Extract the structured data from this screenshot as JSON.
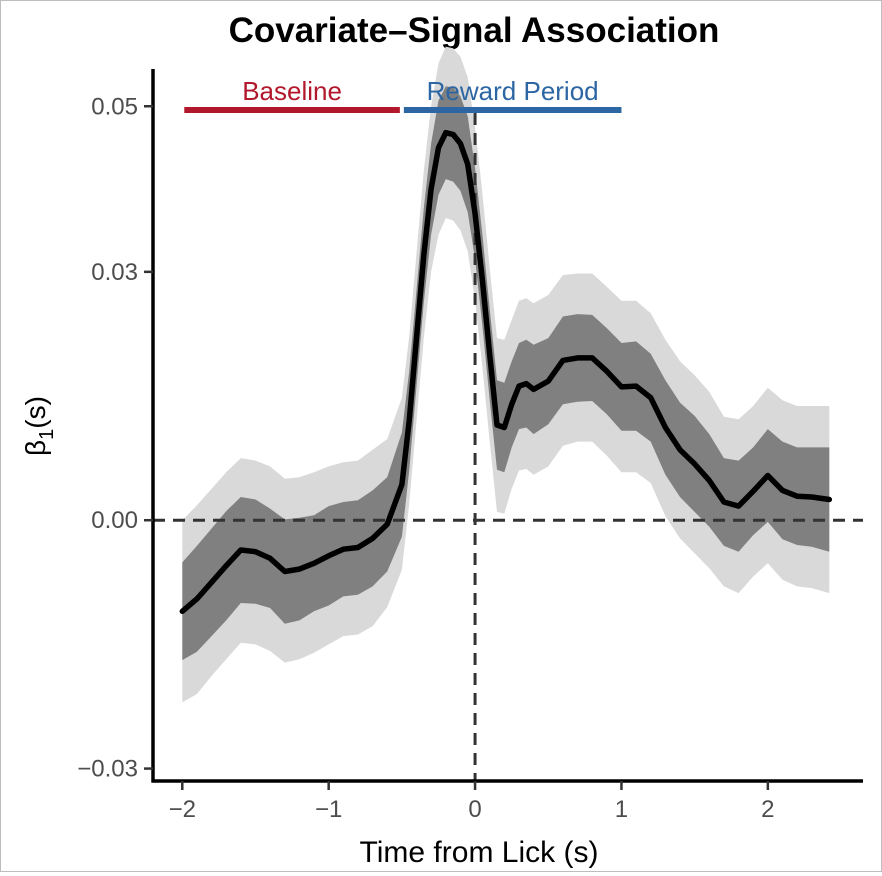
{
  "chart_data": {
    "type": "line",
    "title": "Covariate–Signal Association",
    "xlabel": "Time from Lick (s)",
    "ylabel": "β₁(s)",
    "ylabel_main": "β",
    "ylabel_sub": "1",
    "ylabel_suffix": "(s)",
    "xlim": [
      -2.2,
      2.65
    ],
    "ylim": [
      -0.0315,
      0.0545
    ],
    "xticks": [
      -2,
      -1,
      0,
      1,
      2
    ],
    "xtick_labels": [
      "−2",
      "−1",
      "0",
      "1",
      "2"
    ],
    "yticks": [
      -0.03,
      0.0,
      0.03,
      0.05
    ],
    "ytick_labels": [
      "−0.03",
      "0.00",
      "0.03",
      "0.05"
    ],
    "grid": false,
    "reference_lines": {
      "hline_y": 0,
      "vline_x": 0,
      "style": "dashed"
    },
    "periods": [
      {
        "label": "Baseline",
        "x_start": -2.0,
        "x_end": -0.5,
        "color": "#b2182b"
      },
      {
        "label": "Reward Period",
        "x_start": -0.5,
        "x_end": 1.0,
        "color": "#2c66a3"
      }
    ],
    "series": [
      {
        "name": "estimate",
        "color": "#000000",
        "x": [
          -2.0,
          -1.9,
          -1.8,
          -1.7,
          -1.6,
          -1.5,
          -1.4,
          -1.3,
          -1.2,
          -1.1,
          -1.0,
          -0.9,
          -0.8,
          -0.7,
          -0.6,
          -0.5,
          -0.45,
          -0.4,
          -0.35,
          -0.3,
          -0.25,
          -0.2,
          -0.15,
          -0.1,
          -0.05,
          0.0,
          0.05,
          0.1,
          0.15,
          0.2,
          0.25,
          0.3,
          0.35,
          0.4,
          0.5,
          0.6,
          0.7,
          0.8,
          0.9,
          1.0,
          1.1,
          1.2,
          1.3,
          1.4,
          1.5,
          1.6,
          1.7,
          1.8,
          1.9,
          2.0,
          2.1,
          2.2,
          2.3,
          2.42
        ],
        "values": [
          -0.011,
          -0.0095,
          -0.0075,
          -0.0055,
          -0.0036,
          -0.0038,
          -0.0046,
          -0.0062,
          -0.0059,
          -0.0052,
          -0.0043,
          -0.0035,
          -0.0033,
          -0.0022,
          -0.0005,
          0.0043,
          0.012,
          0.022,
          0.032,
          0.04,
          0.045,
          0.0468,
          0.0466,
          0.0455,
          0.043,
          0.037,
          0.029,
          0.02,
          0.0115,
          0.0112,
          0.014,
          0.0162,
          0.0165,
          0.0158,
          0.0168,
          0.0193,
          0.0196,
          0.0196,
          0.018,
          0.0161,
          0.0162,
          0.0148,
          0.0112,
          0.0085,
          0.0068,
          0.0048,
          0.0022,
          0.0017,
          0.0035,
          0.0054,
          0.0036,
          0.0029,
          0.0028,
          0.0025
        ]
      }
    ],
    "bands": [
      {
        "name": "inner-band",
        "color": "#808080",
        "lower": [
          -0.0169,
          -0.0159,
          -0.014,
          -0.0121,
          -0.01,
          -0.0101,
          -0.0106,
          -0.0125,
          -0.0121,
          -0.011,
          -0.0103,
          -0.0092,
          -0.009,
          -0.008,
          -0.0062,
          -0.002,
          0.006,
          0.0162,
          0.0263,
          0.0345,
          0.0393,
          0.0412,
          0.0409,
          0.0398,
          0.0372,
          0.0315,
          0.0235,
          0.0145,
          0.0061,
          0.0058,
          0.0088,
          0.011,
          0.0112,
          0.0104,
          0.0116,
          0.014,
          0.0143,
          0.0144,
          0.0128,
          0.0108,
          0.0108,
          0.0095,
          0.0055,
          0.0028,
          0.001,
          -0.0008,
          -0.0031,
          -0.0038,
          -0.0018,
          -0.0002,
          -0.0023,
          -0.003,
          -0.0032,
          -0.0038
        ],
        "upper": [
          -0.0051,
          -0.0031,
          -0.001,
          0.0011,
          0.0028,
          0.0025,
          0.0014,
          0.0001,
          0.0003,
          0.0006,
          0.0017,
          0.0022,
          0.0024,
          0.0036,
          0.0052,
          0.0106,
          0.018,
          0.0278,
          0.0377,
          0.0455,
          0.0507,
          0.0524,
          0.0523,
          0.0512,
          0.0488,
          0.0425,
          0.0345,
          0.0255,
          0.0169,
          0.0166,
          0.0192,
          0.0214,
          0.0218,
          0.0212,
          0.022,
          0.0246,
          0.0249,
          0.0248,
          0.0232,
          0.0214,
          0.0216,
          0.0201,
          0.0169,
          0.0142,
          0.0126,
          0.0104,
          0.0075,
          0.0072,
          0.0088,
          0.011,
          0.0095,
          0.0088,
          0.0088,
          0.0088
        ]
      },
      {
        "name": "outer-band",
        "color": "#d9d9d9",
        "lower": [
          -0.022,
          -0.021,
          -0.0188,
          -0.0168,
          -0.0148,
          -0.015,
          -0.0158,
          -0.0172,
          -0.0168,
          -0.016,
          -0.015,
          -0.014,
          -0.0138,
          -0.0128,
          -0.0105,
          -0.006,
          0.002,
          0.012,
          0.022,
          0.03,
          0.0345,
          0.0365,
          0.0362,
          0.035,
          0.0325,
          0.0265,
          0.0185,
          0.0095,
          0.001,
          0.0008,
          0.0038,
          0.006,
          0.0062,
          0.0055,
          0.0065,
          0.009,
          0.0095,
          0.0095,
          0.0078,
          0.0058,
          0.0058,
          0.0045,
          0.0005,
          -0.0022,
          -0.004,
          -0.0058,
          -0.008,
          -0.0088,
          -0.0068,
          -0.0052,
          -0.0072,
          -0.008,
          -0.0082,
          -0.0088
        ],
        "upper": [
          0.0,
          0.0018,
          0.0038,
          0.0058,
          0.0075,
          0.0072,
          0.0065,
          0.005,
          0.0052,
          0.0058,
          0.0065,
          0.007,
          0.0072,
          0.0085,
          0.0098,
          0.0148,
          0.0222,
          0.0322,
          0.0422,
          0.05,
          0.0552,
          0.0572,
          0.057,
          0.056,
          0.0535,
          0.0475,
          0.0395,
          0.0305,
          0.022,
          0.0218,
          0.0242,
          0.0265,
          0.0268,
          0.0262,
          0.0272,
          0.0296,
          0.0298,
          0.0298,
          0.0282,
          0.0265,
          0.0265,
          0.025,
          0.0218,
          0.0192,
          0.0175,
          0.0155,
          0.0125,
          0.0122,
          0.0138,
          0.016,
          0.0145,
          0.0138,
          0.0138,
          0.0138
        ]
      }
    ]
  }
}
